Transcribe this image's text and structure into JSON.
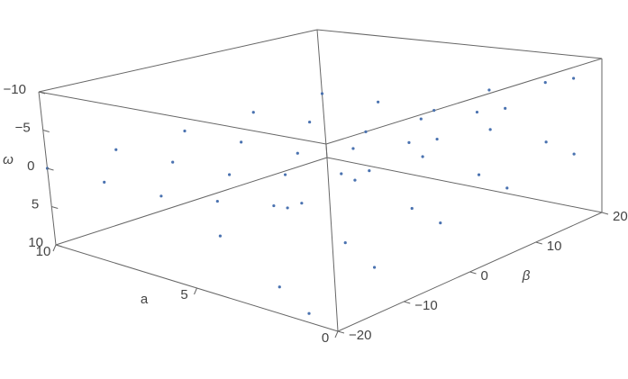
{
  "chart_data": {
    "type": "scatter3d",
    "xlabel": "a",
    "ylabel": "β",
    "zlabel": "ω",
    "xlim": [
      10,
      0
    ],
    "xticks": [
      10,
      5,
      0
    ],
    "ylim": [
      -20,
      20
    ],
    "yticks": [
      {
        "value": -20,
        "label": "−20"
      },
      {
        "value": -10,
        "label": "−10"
      },
      0,
      10,
      20
    ],
    "zlim": [
      10,
      -10
    ],
    "zticks": [
      {
        "value": -10,
        "label": "−10"
      },
      {
        "value": -5,
        "label": "−5"
      },
      0,
      5,
      10
    ],
    "series": [
      {
        "color": "#4a72b0",
        "x": [
          10,
          10,
          10,
          10,
          10,
          8,
          8,
          8,
          8,
          8,
          6,
          6,
          6,
          6,
          6,
          4,
          4,
          4,
          4,
          4,
          2,
          2,
          2,
          2,
          2,
          1,
          1,
          1,
          1,
          1,
          4,
          4,
          4,
          4,
          4,
          2,
          2,
          2,
          2,
          2,
          1,
          1,
          1,
          1,
          1
        ],
        "y": [
          -20,
          -10,
          0,
          10,
          20,
          -20,
          -10,
          0,
          10,
          20,
          -20,
          -10,
          0,
          10,
          20,
          -20,
          -10,
          0,
          10,
          20,
          -20,
          -10,
          0,
          10,
          20,
          -20,
          -10,
          0,
          10,
          20,
          -20,
          -10,
          0,
          10,
          20,
          -20,
          -10,
          0,
          10,
          20,
          -20,
          -10,
          0,
          10,
          20
        ],
        "z": [
          0,
          0,
          0,
          0,
          0,
          0,
          0,
          0,
          0,
          0,
          0,
          0,
          0,
          0,
          0,
          -1,
          -1.5,
          -2,
          -3,
          -4,
          -2,
          -3,
          -4,
          -5,
          -6,
          -3,
          -4,
          -5,
          -6,
          -7,
          3,
          2.5,
          2,
          2,
          1.5,
          7,
          5,
          4,
          3,
          2,
          9,
          7,
          5,
          4,
          3
        ]
      }
    ]
  }
}
